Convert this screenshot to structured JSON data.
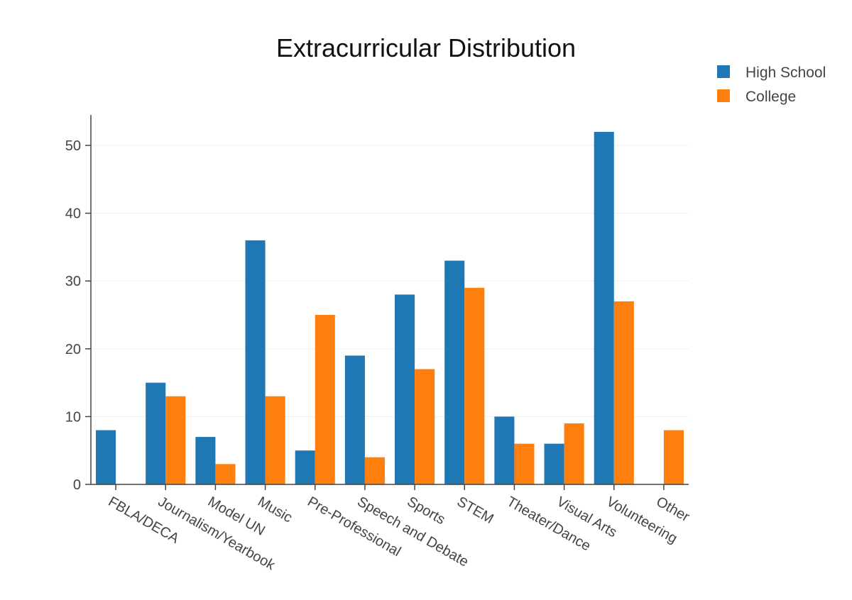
{
  "chart_data": {
    "type": "bar",
    "title": "Extracurricular Distribution",
    "xlabel": "",
    "ylabel": "",
    "categories": [
      "FBLA/DECA",
      "Journalism/Yearbook",
      "Model UN",
      "Music",
      "Pre-Professional",
      "Speech and Debate",
      "Sports",
      "STEM",
      "Theater/Dance",
      "Visual Arts",
      "Volunteering",
      "Other"
    ],
    "series": [
      {
        "name": "High School",
        "color": "#1f77b4",
        "values": [
          8,
          15,
          7,
          36,
          5,
          19,
          28,
          33,
          10,
          6,
          52,
          0
        ]
      },
      {
        "name": "College",
        "color": "#ff7f0e",
        "values": [
          0,
          13,
          3,
          13,
          25,
          4,
          17,
          29,
          6,
          9,
          27,
          8
        ]
      }
    ],
    "ylim": [
      0,
      54.5
    ],
    "yticks": [
      0,
      10,
      20,
      30,
      40,
      50
    ],
    "grid": true,
    "legend_position": "top-right"
  }
}
